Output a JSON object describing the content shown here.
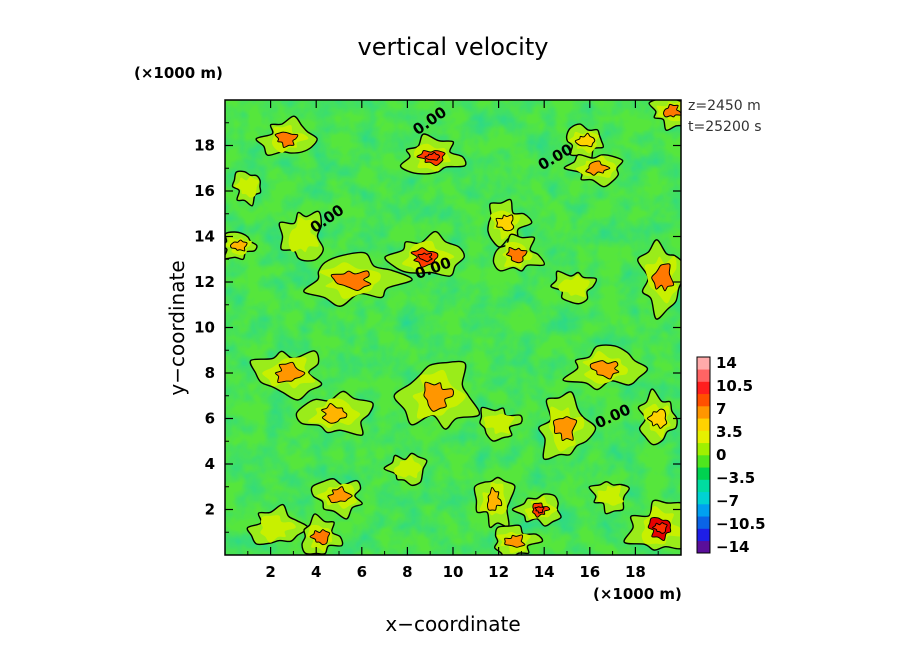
{
  "chart_data": {
    "type": "heatmap",
    "title": "vertical velocity",
    "xlabel": "x−coordinate",
    "ylabel": "y−coordinate",
    "x_unit": "(×1000 m)",
    "y_unit": "(×1000 m)",
    "xlim": [
      0,
      20
    ],
    "ylim": [
      0,
      20
    ],
    "x_ticks": [
      "2",
      "4",
      "6",
      "8",
      "10",
      "12",
      "14",
      "16",
      "18"
    ],
    "y_ticks": [
      "2",
      "4",
      "6",
      "8",
      "10",
      "12",
      "14",
      "16",
      "18"
    ],
    "annotations": [
      "z=2450 m",
      "t=25200 s"
    ],
    "contour_labels": [
      "0.00",
      "0.00",
      "0.00",
      "0.00",
      "0.00"
    ],
    "colorbar": {
      "ticks": [
        "14",
        "10.5",
        "7",
        "3.5",
        "0",
        "−3.5",
        "−7",
        "−10.5",
        "−14"
      ],
      "range": [
        -14,
        14
      ],
      "colors": [
        "#5a0e9a",
        "#1e1ee6",
        "#0a64e6",
        "#00a0f0",
        "#00d2d2",
        "#00dca0",
        "#00d250",
        "#4ee61e",
        "#a0f000",
        "#e6f000",
        "#ffd200",
        "#ff9600",
        "#ff5000",
        "#ff1e1e",
        "#ff6464",
        "#ffaaaa"
      ]
    },
    "updrafts": [
      [
        2.7,
        18.3,
        1.0,
        0.7,
        6
      ],
      [
        9.1,
        17.5,
        1.2,
        0.7,
        8
      ],
      [
        12.3,
        14.6,
        0.8,
        0.8,
        3
      ],
      [
        15.8,
        18.2,
        0.8,
        0.6,
        3
      ],
      [
        19.6,
        19.5,
        0.8,
        0.6,
        6
      ],
      [
        16.3,
        17.0,
        1.0,
        0.6,
        5
      ],
      [
        3.4,
        14.0,
        0.8,
        1.0,
        2
      ],
      [
        8.8,
        13.1,
        1.3,
        0.8,
        8
      ],
      [
        12.8,
        13.2,
        0.9,
        0.7,
        6
      ],
      [
        5.6,
        12.1,
        1.8,
        0.9,
        6
      ],
      [
        0.6,
        13.6,
        0.7,
        0.5,
        4
      ],
      [
        19.2,
        12.2,
        0.9,
        1.3,
        6
      ],
      [
        15.3,
        11.8,
        0.8,
        0.6,
        2
      ],
      [
        2.8,
        8.0,
        1.3,
        0.9,
        5
      ],
      [
        4.8,
        6.2,
        1.3,
        0.8,
        4
      ],
      [
        9.3,
        7.0,
        1.4,
        1.3,
        5
      ],
      [
        16.7,
        8.2,
        1.4,
        0.8,
        5
      ],
      [
        14.9,
        5.6,
        1.0,
        1.2,
        5
      ],
      [
        19.0,
        6.0,
        0.8,
        0.9,
        3
      ],
      [
        12.0,
        5.8,
        0.8,
        0.6,
        2
      ],
      [
        5.0,
        2.6,
        1.0,
        0.7,
        5
      ],
      [
        11.8,
        2.4,
        0.7,
        1.0,
        4
      ],
      [
        13.8,
        2.0,
        0.8,
        0.6,
        8
      ],
      [
        19.1,
        1.2,
        1.2,
        1.0,
        10
      ],
      [
        2.2,
        1.2,
        1.0,
        0.7,
        2
      ],
      [
        4.2,
        0.8,
        0.8,
        0.7,
        6
      ],
      [
        12.7,
        0.6,
        0.9,
        0.6,
        5
      ],
      [
        1.0,
        16.2,
        0.6,
        0.6,
        2
      ],
      [
        16.9,
        2.6,
        0.7,
        0.6,
        2
      ],
      [
        8.0,
        3.8,
        0.7,
        0.6,
        2
      ]
    ]
  }
}
